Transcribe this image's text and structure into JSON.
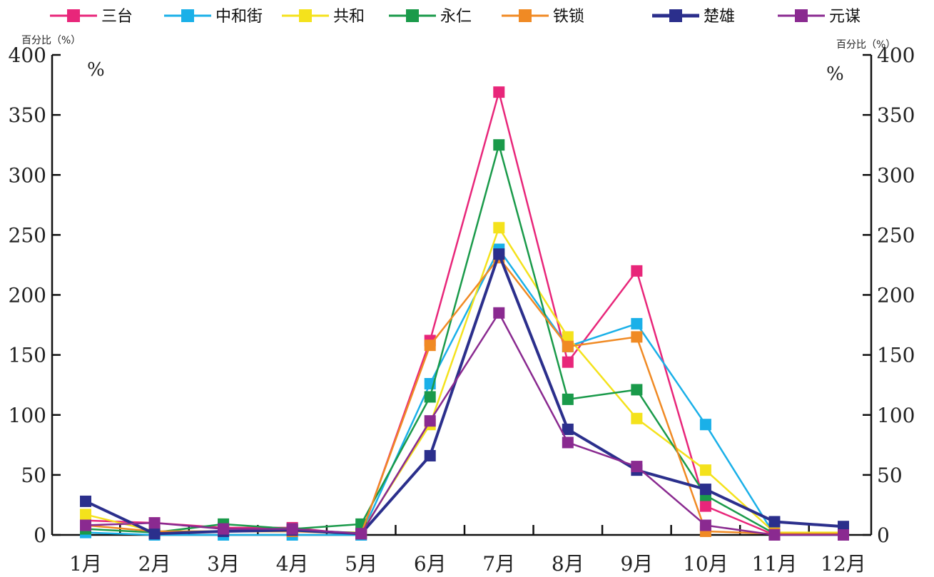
{
  "chart_data": {
    "type": "line",
    "categories": [
      "1月",
      "2月",
      "3月",
      "4月",
      "5月",
      "6月",
      "7月",
      "8月",
      "9月",
      "10月",
      "11月",
      "12月"
    ],
    "ylabel_left": "百分比（%）",
    "ylabel_right": "百分比（%）",
    "unit_left": "%",
    "unit_right": "%",
    "ylim": [
      0,
      400
    ],
    "yticks": [
      0,
      50,
      100,
      150,
      200,
      250,
      300,
      350,
      400
    ],
    "legend_position": "top",
    "grid": false,
    "series": [
      {
        "name": "三台",
        "color": "#e8267a",
        "values": [
          12,
          10,
          6,
          6,
          0,
          162,
          369,
          144,
          220,
          24,
          0,
          0
        ]
      },
      {
        "name": "中和街",
        "color": "#1ab0e8",
        "values": [
          2,
          0,
          0,
          0,
          0,
          126,
          238,
          157,
          176,
          92,
          0,
          0
        ]
      },
      {
        "name": "共和",
        "color": "#f4e21c",
        "values": [
          17,
          3,
          3,
          3,
          2,
          92,
          256,
          165,
          97,
          54,
          2,
          2
        ]
      },
      {
        "name": "永仁",
        "color": "#1a9a4a",
        "values": [
          5,
          2,
          9,
          5,
          9,
          115,
          325,
          113,
          121,
          33,
          1,
          1
        ]
      },
      {
        "name": "铁锁",
        "color": "#f08a24",
        "values": [
          8,
          3,
          3,
          3,
          1,
          158,
          231,
          157,
          165,
          3,
          1,
          1
        ]
      },
      {
        "name": "楚雄",
        "color": "#2b2f8c",
        "values": [
          28,
          1,
          3,
          4,
          1,
          66,
          234,
          88,
          54,
          38,
          11,
          7
        ]
      },
      {
        "name": "元谋",
        "color": "#8a2a90",
        "values": [
          8,
          10,
          5,
          5,
          1,
          95,
          185,
          77,
          57,
          8,
          0,
          0
        ]
      }
    ]
  }
}
